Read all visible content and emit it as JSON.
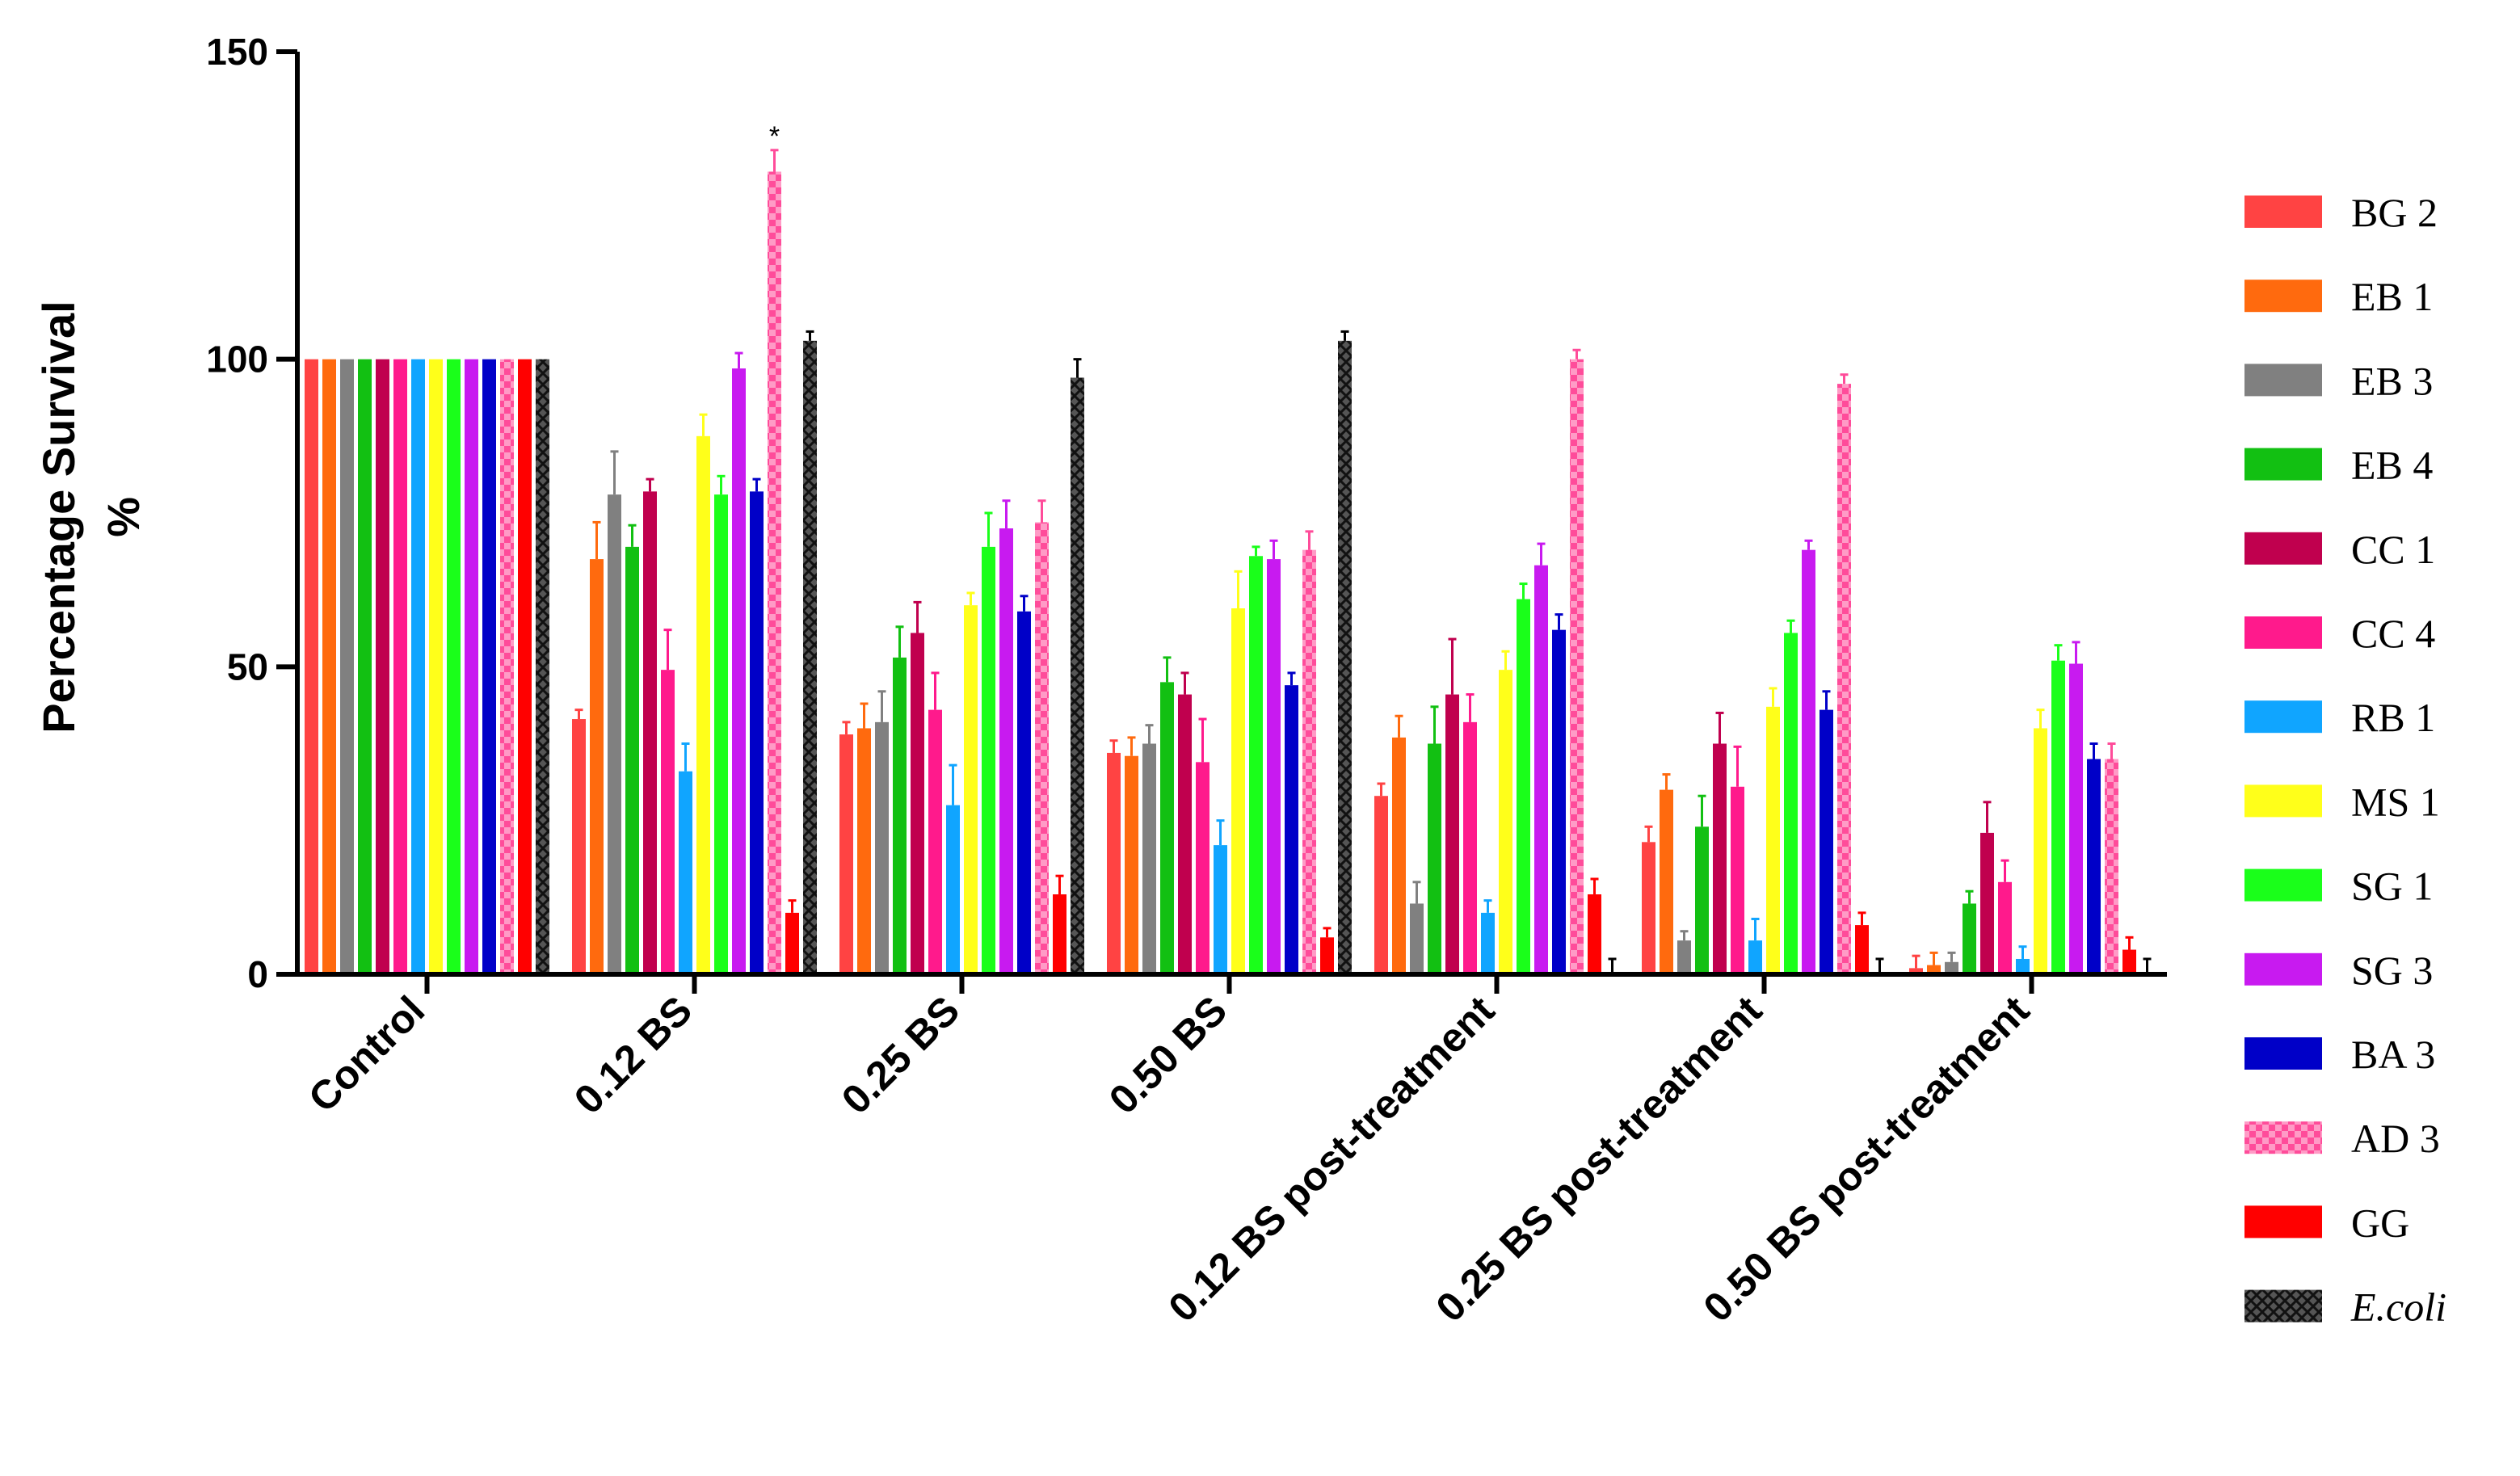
{
  "chart_data": {
    "type": "bar",
    "title": "",
    "xlabel": "",
    "ylabel": [
      "Percentage Survival",
      "%"
    ],
    "ylim": [
      0,
      150
    ],
    "yticks": [
      "0",
      "50",
      "100",
      "150"
    ],
    "grid": false,
    "legend_position": "right",
    "categories": [
      "Control",
      "0.12 BS",
      "0.25 BS",
      "0.50 BS",
      "0.12 BS post-treatment",
      "0.25 BS post-treatment",
      "0.50 BS post-treatment"
    ],
    "series": [
      {
        "name": "BG 2",
        "color": "#FF4343",
        "pattern": "solid",
        "values": [
          100,
          41.5,
          39,
          36,
          29,
          21.5,
          1
        ],
        "errors": [
          0,
          1.5,
          2,
          2,
          2,
          2.5,
          2
        ]
      },
      {
        "name": "EB 1",
        "color": "#FF6A0E",
        "pattern": "solid",
        "values": [
          100,
          67.5,
          40,
          35.5,
          38.5,
          30,
          1.5
        ],
        "errors": [
          0,
          6,
          4,
          3,
          3.5,
          2.5,
          2
        ]
      },
      {
        "name": "EB 3",
        "color": "#808080",
        "pattern": "solid",
        "values": [
          100,
          78,
          41,
          37.5,
          11.5,
          5.5,
          2
        ],
        "errors": [
          0,
          7,
          5,
          3,
          3.5,
          1.5,
          1.5
        ]
      },
      {
        "name": "EB 4",
        "color": "#12C012",
        "pattern": "solid",
        "values": [
          100,
          69.5,
          51.5,
          47.5,
          37.5,
          24,
          11.5
        ],
        "errors": [
          0,
          3.5,
          5,
          4,
          6,
          5,
          2
        ]
      },
      {
        "name": "CC 1",
        "color": "#C0004E",
        "pattern": "solid",
        "values": [
          100,
          78.5,
          55.5,
          45.5,
          45.5,
          37.5,
          23
        ],
        "errors": [
          0,
          2,
          5,
          3.5,
          9,
          5,
          5
        ]
      },
      {
        "name": "CC 4",
        "color": "#FF1A8C",
        "pattern": "solid",
        "values": [
          100,
          49.5,
          43,
          34.5,
          41,
          30.5,
          15
        ],
        "errors": [
          0,
          6.5,
          6,
          7,
          4.5,
          6.5,
          3.5
        ]
      },
      {
        "name": "RB 1",
        "color": "#10A5FF",
        "pattern": "solid",
        "values": [
          100,
          33,
          27.5,
          21,
          10,
          5.5,
          2.5
        ],
        "errors": [
          0,
          4.5,
          6.5,
          4,
          2,
          3.5,
          2
        ]
      },
      {
        "name": "MS 1",
        "color": "#FFFF1A",
        "pattern": "solid",
        "values": [
          100,
          87.5,
          60,
          59.5,
          49.5,
          43.5,
          40
        ],
        "errors": [
          0,
          3.5,
          2,
          6,
          3,
          3,
          3
        ]
      },
      {
        "name": "SG 1",
        "color": "#1AFF1A",
        "pattern": "solid",
        "values": [
          100,
          78,
          69.5,
          68,
          61,
          55.5,
          51
        ],
        "errors": [
          0,
          3,
          5.5,
          1.5,
          2.5,
          2,
          2.5
        ]
      },
      {
        "name": "SG 3",
        "color": "#C81AF0",
        "pattern": "solid",
        "values": [
          100,
          98.5,
          72.5,
          67.5,
          66.5,
          69,
          50.5
        ],
        "errors": [
          0,
          2.5,
          4.5,
          3,
          3.5,
          1.5,
          3.5
        ]
      },
      {
        "name": "BA 3",
        "color": "#0000C8",
        "pattern": "solid",
        "values": [
          100,
          78.5,
          59,
          47,
          56,
          43,
          35
        ],
        "errors": [
          0,
          2,
          2.5,
          2,
          2.5,
          3,
          2.5
        ]
      },
      {
        "name": "AD 3",
        "color": "#FF4C9A",
        "pattern": "checker",
        "values": [
          100,
          130.5,
          73.5,
          69,
          100,
          96,
          35
        ],
        "errors": [
          0,
          3.5,
          3.5,
          3,
          1.5,
          1.5,
          2.5
        ]
      },
      {
        "name": "GG",
        "color": "#FF0000",
        "pattern": "solid",
        "values": [
          100,
          10,
          13,
          6,
          13,
          8,
          4
        ],
        "errors": [
          0,
          2,
          3,
          1.5,
          2.5,
          2,
          2
        ]
      },
      {
        "name": "E.coli",
        "color": "#555555",
        "pattern": "crosshatch",
        "values": [
          100,
          103,
          97,
          103,
          0,
          0,
          0
        ],
        "errors": [
          0,
          1.5,
          3,
          1.5,
          2.5,
          2.5,
          2.5
        ]
      }
    ],
    "annotations": [
      {
        "text": "*",
        "category": "0.12 BS",
        "series": "AD 3"
      }
    ]
  }
}
